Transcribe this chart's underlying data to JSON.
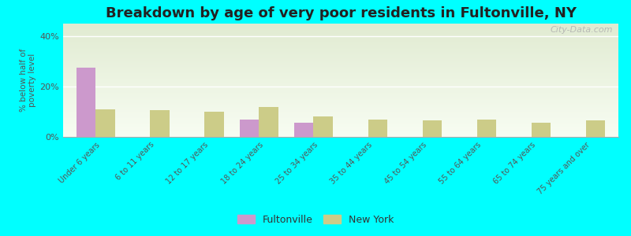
{
  "title": "Breakdown by age of very poor residents in Fultonville, NY",
  "ylabel": "% below half of\npoverty level",
  "categories": [
    "Under 6 years",
    "6 to 11 years",
    "12 to 17 years",
    "18 to 24 years",
    "25 to 34 years",
    "35 to 44 years",
    "45 to 54 years",
    "55 to 64 years",
    "65 to 74 years",
    "75 years and over"
  ],
  "fultonville_values": [
    27.5,
    0,
    0,
    7,
    5.5,
    0,
    0,
    0,
    0,
    0
  ],
  "newyork_values": [
    11,
    10.5,
    10,
    12,
    8,
    7,
    6.5,
    7,
    5.5,
    6.5
  ],
  "fultonville_color": "#cc99cc",
  "newyork_color": "#cccc88",
  "background_color": "#00ffff",
  "ylim": [
    0,
    45
  ],
  "yticks": [
    0,
    20,
    40
  ],
  "ytick_labels": [
    "0%",
    "20%",
    "40%"
  ],
  "bar_width": 0.35,
  "title_fontsize": 13,
  "label_fontsize": 8,
  "watermark": "City-Data.com"
}
